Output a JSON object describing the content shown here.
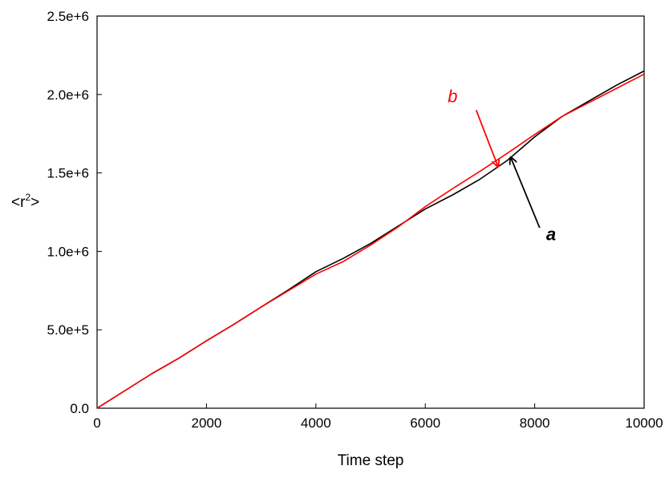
{
  "chart_data": {
    "type": "line",
    "title": "",
    "xlabel": "Time step",
    "ylabel": {
      "base": "<r",
      "sup": "2",
      "close": ">"
    },
    "xlim": [
      0,
      10000
    ],
    "ylim": [
      0,
      2500000
    ],
    "xticks": [
      0,
      2000,
      4000,
      6000,
      8000,
      10000
    ],
    "xtick_labels": [
      "0",
      "2000",
      "4000",
      "6000",
      "8000",
      "10000"
    ],
    "yticks": [
      0,
      500000,
      1000000,
      1500000,
      2000000,
      2500000
    ],
    "ytick_labels": [
      "0.0",
      "5.0e+5",
      "1.0e+6",
      "1.5e+6",
      "2.0e+6",
      "2.5e+6"
    ],
    "grid": false,
    "legend": "none",
    "series": [
      {
        "id": "a",
        "color": "#000000",
        "x": [
          0,
          500,
          1000,
          1500,
          2000,
          2500,
          3000,
          3500,
          4000,
          4500,
          5000,
          5500,
          6000,
          6500,
          7000,
          7500,
          8000,
          8500,
          9000,
          9500,
          10000
        ],
        "y": [
          0,
          110000,
          220000,
          320000,
          430000,
          535000,
          645000,
          755000,
          870000,
          955000,
          1050000,
          1160000,
          1270000,
          1360000,
          1460000,
          1580000,
          1730000,
          1860000,
          1960000,
          2060000,
          2150000
        ]
      },
      {
        "id": "b",
        "color": "#ff0000",
        "x": [
          0,
          500,
          1000,
          1500,
          2000,
          2500,
          3000,
          3500,
          4000,
          4500,
          5000,
          5500,
          6000,
          6500,
          7000,
          7500,
          8000,
          8500,
          9000,
          9500,
          10000
        ],
        "y": [
          0,
          110000,
          220000,
          320000,
          430000,
          535000,
          645000,
          750000,
          855000,
          935000,
          1040000,
          1155000,
          1285000,
          1400000,
          1510000,
          1625000,
          1745000,
          1860000,
          1950000,
          2040000,
          2130000
        ]
      }
    ],
    "annotations": [
      {
        "text": "b",
        "color": "#ff0000",
        "x": 6500,
        "y": 1950000,
        "tail": [
          6930,
          1900000
        ],
        "head": [
          7330,
          1540000
        ]
      },
      {
        "text": "a",
        "color": "#000000",
        "x": 8300,
        "y": 1070000,
        "tail": [
          8090,
          1150000
        ],
        "head": [
          7560,
          1600000
        ]
      }
    ]
  }
}
